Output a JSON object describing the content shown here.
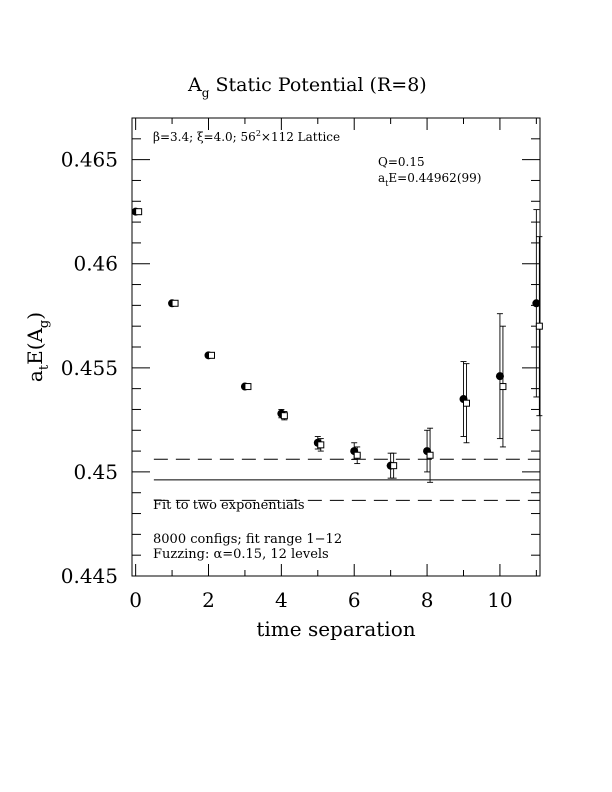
{
  "chart_data": {
    "type": "scatter",
    "title_main": "A",
    "title_sub": "g",
    "title_rest": " Static Potential (R=8)",
    "xlabel": "time separation",
    "ylabel_main": "a",
    "ylabel_sub1": "t",
    "ylabel_mid": "E(A",
    "ylabel_sub2": "g",
    "ylabel_end": ")",
    "xlim": [
      -0.1,
      11.1
    ],
    "ylim": [
      0.445,
      0.467
    ],
    "x_ticks": [
      0,
      2,
      4,
      6,
      8,
      10
    ],
    "x_tick_labels": [
      "0",
      "2",
      "4",
      "6",
      "8",
      "10"
    ],
    "y_ticks": [
      0.445,
      0.45,
      0.455,
      0.46,
      0.465
    ],
    "y_tick_labels": [
      "0.445",
      "0.45",
      "0.455",
      "0.46",
      "0.465"
    ],
    "header_annotation": {
      "beta": "β=3.4; ",
      "xi": "ξ=4.0; 56",
      "sup": "2",
      "rest": "×112 Lattice"
    },
    "fit_annotation": {
      "q": "Q=0.15",
      "energy_main": "a",
      "energy_sub": "t",
      "energy_rest": "E=0.44962(99)"
    },
    "fit_label": "Fit to two exponentials",
    "footer_lines": [
      "8000 configs; fit range 1−12",
      "Fuzzing: α=0.15, 12 levels"
    ],
    "fit": {
      "value": 0.44962,
      "upper": 0.45061,
      "lower": 0.44863,
      "x_start": 0.5,
      "x_end": 11.1
    },
    "series": [
      {
        "marker": "filled-circle",
        "points": [
          {
            "x": 0,
            "y": 0.4625,
            "err": 0.0001
          },
          {
            "x": 1,
            "y": 0.4581,
            "err": 0.0001
          },
          {
            "x": 2,
            "y": 0.4556,
            "err": 0.0001
          },
          {
            "x": 3,
            "y": 0.4541,
            "err": 0.0001
          },
          {
            "x": 4,
            "y": 0.4528,
            "err": 0.0002
          },
          {
            "x": 5,
            "y": 0.4514,
            "err": 0.0003
          },
          {
            "x": 6,
            "y": 0.451,
            "err": 0.0004
          },
          {
            "x": 7,
            "y": 0.4503,
            "err": 0.0006
          },
          {
            "x": 8,
            "y": 0.451,
            "err": 0.001
          },
          {
            "x": 9,
            "y": 0.4535,
            "err": 0.0018
          },
          {
            "x": 10,
            "y": 0.4546,
            "err": 0.003
          },
          {
            "x": 11,
            "y": 0.4581,
            "err": 0.0045
          }
        ]
      },
      {
        "marker": "open-square",
        "points": [
          {
            "x": 0,
            "y": 0.4625,
            "err": 0.0001
          },
          {
            "x": 1,
            "y": 0.4581,
            "err": 0.0001
          },
          {
            "x": 2,
            "y": 0.4556,
            "err": 0.0001
          },
          {
            "x": 3,
            "y": 0.4541,
            "err": 0.0001
          },
          {
            "x": 4,
            "y": 0.4527,
            "err": 0.0002
          },
          {
            "x": 5,
            "y": 0.4513,
            "err": 0.0003
          },
          {
            "x": 6,
            "y": 0.4508,
            "err": 0.0004
          },
          {
            "x": 7,
            "y": 0.4503,
            "err": 0.0006
          },
          {
            "x": 8,
            "y": 0.4508,
            "err": 0.0013
          },
          {
            "x": 9,
            "y": 0.4533,
            "err": 0.0019
          },
          {
            "x": 10,
            "y": 0.4541,
            "err": 0.0029
          },
          {
            "x": 11,
            "y": 0.457,
            "err": 0.0043
          }
        ]
      }
    ]
  }
}
